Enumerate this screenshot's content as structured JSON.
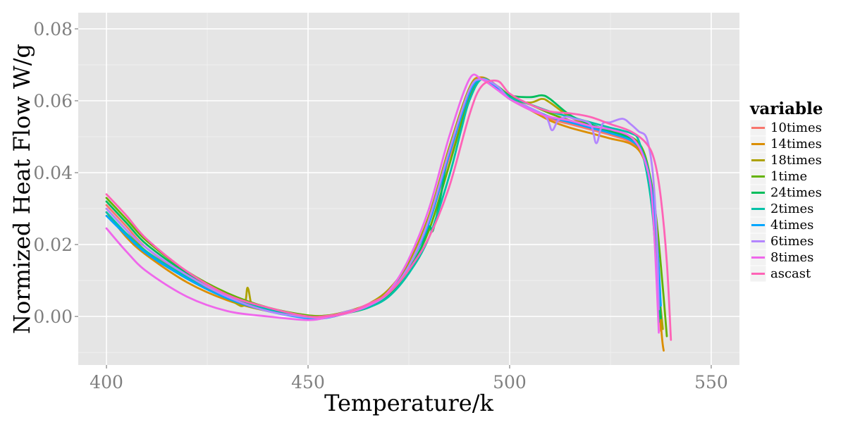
{
  "chart_data": {
    "type": "line",
    "title": "",
    "xlabel": "Temperature/k",
    "ylabel": "Normized Heat Flow W/g",
    "xlim": [
      393,
      557
    ],
    "ylim": [
      -0.0135,
      0.0845
    ],
    "x_ticks": [
      400,
      450,
      500,
      550
    ],
    "x_tick_labels": [
      "400",
      "450",
      "500",
      "550"
    ],
    "y_ticks": [
      0.0,
      0.02,
      0.04,
      0.06,
      0.08
    ],
    "y_tick_labels": [
      "0.00",
      "0.02",
      "0.04",
      "0.06",
      "0.08"
    ],
    "grid": true,
    "legend": {
      "title": "variable",
      "placement": "right"
    },
    "series": [
      {
        "name": "10times",
        "color": "#F8766D",
        "x": [
          400,
          405,
          410,
          420,
          430,
          440,
          450,
          455,
          460,
          465,
          470,
          475,
          480,
          485,
          490,
          493,
          497,
          500,
          505,
          510,
          515,
          520,
          525,
          530,
          533,
          535,
          536,
          537,
          537.5
        ],
        "y": [
          0.031,
          0.025,
          0.019,
          0.011,
          0.0055,
          0.002,
          0.0001,
          0.0002,
          0.0015,
          0.003,
          0.007,
          0.014,
          0.026,
          0.044,
          0.061,
          0.066,
          0.064,
          0.061,
          0.058,
          0.055,
          0.0535,
          0.052,
          0.0505,
          0.0485,
          0.045,
          0.036,
          0.025,
          0.008,
          -0.004
        ]
      },
      {
        "name": "14times",
        "color": "#DB8E00",
        "x": [
          400,
          405,
          410,
          420,
          430,
          440,
          450,
          455,
          460,
          465,
          470,
          475,
          480,
          485,
          490,
          493,
          497,
          500,
          505,
          510,
          515,
          520,
          525,
          530,
          533,
          535,
          536,
          537,
          537.8,
          538.2
        ],
        "y": [
          0.029,
          0.022,
          0.017,
          0.0095,
          0.0045,
          0.0015,
          0.0,
          0.0002,
          0.0015,
          0.003,
          0.007,
          0.015,
          0.028,
          0.046,
          0.0635,
          0.0665,
          0.064,
          0.0605,
          0.0575,
          0.0545,
          0.0525,
          0.051,
          0.0495,
          0.048,
          0.0445,
          0.036,
          0.024,
          0.005,
          -0.006,
          -0.0095
        ]
      },
      {
        "name": "18times",
        "color": "#AEA200",
        "x": [
          400,
          405,
          410,
          420,
          430,
          434,
          435,
          436,
          437,
          440,
          450,
          455,
          460,
          465,
          470,
          475,
          480,
          485,
          490,
          493,
          497,
          500,
          505,
          508,
          510,
          515,
          520,
          525,
          530,
          533,
          535,
          536,
          537,
          538
        ],
        "y": [
          0.03,
          0.024,
          0.018,
          0.0105,
          0.005,
          0.003,
          0.008,
          0.003,
          0.0025,
          0.002,
          0.0003,
          0.0003,
          0.0015,
          0.0035,
          0.0075,
          0.015,
          0.028,
          0.047,
          0.0635,
          0.066,
          0.064,
          0.0605,
          0.0595,
          0.0605,
          0.0595,
          0.0555,
          0.053,
          0.051,
          0.049,
          0.045,
          0.036,
          0.024,
          0.008,
          -0.0035
        ]
      },
      {
        "name": "1time",
        "color": "#64B200",
        "x": [
          400,
          405,
          410,
          420,
          430,
          440,
          450,
          455,
          460,
          465,
          470,
          475,
          480,
          485,
          490,
          493,
          497,
          500,
          505,
          510,
          515,
          520,
          525,
          530,
          533,
          535,
          536.5,
          538,
          539
        ],
        "y": [
          0.033,
          0.027,
          0.021,
          0.0125,
          0.0065,
          0.0025,
          0.0003,
          0.0003,
          0.0012,
          0.003,
          0.0065,
          0.013,
          0.024,
          0.042,
          0.061,
          0.066,
          0.064,
          0.0615,
          0.059,
          0.0565,
          0.0545,
          0.053,
          0.0515,
          0.05,
          0.0465,
          0.038,
          0.026,
          0.008,
          -0.0055
        ]
      },
      {
        "name": "24times",
        "color": "#00BD5C",
        "x": [
          400,
          405,
          410,
          420,
          430,
          440,
          450,
          455,
          460,
          465,
          470,
          475,
          478,
          480,
          481,
          483,
          485,
          490,
          493,
          497,
          500,
          505,
          508,
          510,
          515,
          520,
          525,
          530,
          533,
          535,
          536,
          537,
          537.5
        ],
        "y": [
          0.032,
          0.026,
          0.02,
          0.012,
          0.006,
          0.002,
          0.0,
          -0.0002,
          0.001,
          0.0025,
          0.006,
          0.013,
          0.019,
          0.025,
          0.024,
          0.034,
          0.046,
          0.062,
          0.066,
          0.0635,
          0.0615,
          0.061,
          0.0615,
          0.0605,
          0.056,
          0.0535,
          0.0515,
          0.0495,
          0.0455,
          0.037,
          0.025,
          0.008,
          -0.0005
        ]
      },
      {
        "name": "2times",
        "color": "#00C1A7",
        "x": [
          400,
          405,
          410,
          420,
          430,
          440,
          450,
          455,
          460,
          465,
          470,
          475,
          480,
          485,
          488,
          490,
          493,
          497,
          500,
          505,
          510,
          515,
          520,
          525,
          530,
          532,
          534,
          535.5,
          536.5,
          537
        ],
        "y": [
          0.029,
          0.023,
          0.018,
          0.011,
          0.006,
          0.002,
          0.0,
          -0.0002,
          0.0012,
          0.0025,
          0.0055,
          0.012,
          0.022,
          0.039,
          0.052,
          0.06,
          0.066,
          0.064,
          0.061,
          0.059,
          0.057,
          0.0555,
          0.054,
          0.0525,
          0.051,
          0.049,
          0.04,
          0.028,
          0.012,
          -0.0015
        ]
      },
      {
        "name": "4times",
        "color": "#00A6FF",
        "x": [
          400,
          405,
          410,
          420,
          430,
          440,
          450,
          455,
          460,
          465,
          470,
          475,
          480,
          485,
          490,
          493,
          497,
          500,
          505,
          510,
          515,
          520,
          525,
          530,
          533,
          535,
          536.5,
          537.5
        ],
        "y": [
          0.028,
          0.0225,
          0.0175,
          0.0105,
          0.005,
          0.0015,
          -0.0005,
          -0.0003,
          0.0012,
          0.003,
          0.0065,
          0.014,
          0.026,
          0.045,
          0.062,
          0.066,
          0.0635,
          0.0605,
          0.058,
          0.0555,
          0.054,
          0.0525,
          0.051,
          0.049,
          0.0455,
          0.037,
          0.022,
          0.003
        ]
      },
      {
        "name": "6times",
        "color": "#B385FF",
        "x": [
          400,
          405,
          410,
          420,
          430,
          440,
          450,
          455,
          460,
          465,
          470,
          475,
          480,
          485,
          490,
          493,
          497,
          500,
          505,
          509,
          510.5,
          512,
          514,
          516,
          520,
          521.5,
          523,
          525,
          528,
          530,
          532,
          534,
          535.5,
          536.5,
          537
        ],
        "y": [
          0.03,
          0.024,
          0.019,
          0.0115,
          0.0055,
          0.0015,
          -0.0002,
          0.0,
          0.0015,
          0.003,
          0.0065,
          0.014,
          0.027,
          0.046,
          0.063,
          0.066,
          0.064,
          0.0605,
          0.058,
          0.0555,
          0.0518,
          0.0545,
          0.0555,
          0.055,
          0.0535,
          0.0482,
          0.0535,
          0.054,
          0.055,
          0.0535,
          0.0515,
          0.0495,
          0.04,
          0.022,
          0.002
        ]
      },
      {
        "name": "8times",
        "color": "#EF67EB",
        "x": [
          400,
          405,
          410,
          420,
          430,
          440,
          450,
          455,
          460,
          465,
          470,
          475,
          480,
          485,
          490,
          493,
          497,
          500,
          505,
          510,
          515,
          520,
          525,
          530,
          533,
          535,
          536,
          537
        ],
        "y": [
          0.0245,
          0.018,
          0.0125,
          0.0055,
          0.0015,
          0.0,
          -0.001,
          -0.0002,
          0.001,
          0.003,
          0.007,
          0.016,
          0.03,
          0.05,
          0.066,
          0.066,
          0.063,
          0.0605,
          0.0575,
          0.0555,
          0.0545,
          0.053,
          0.052,
          0.05,
          0.045,
          0.036,
          0.02,
          -0.0045
        ]
      },
      {
        "name": "ascast",
        "color": "#FF63B6",
        "x": [
          400,
          405,
          410,
          420,
          430,
          440,
          450,
          455,
          460,
          465,
          470,
          475,
          480,
          485,
          490,
          493,
          497,
          500,
          505,
          510,
          515,
          520,
          525,
          530,
          534,
          536,
          537.5,
          539,
          540
        ],
        "y": [
          0.034,
          0.028,
          0.0215,
          0.0125,
          0.006,
          0.0025,
          0.0,
          0.0002,
          0.0012,
          0.0035,
          0.0065,
          0.013,
          0.022,
          0.036,
          0.056,
          0.064,
          0.0655,
          0.062,
          0.059,
          0.057,
          0.0565,
          0.0555,
          0.0535,
          0.0515,
          0.048,
          0.043,
          0.033,
          0.015,
          -0.0065
        ]
      }
    ]
  }
}
